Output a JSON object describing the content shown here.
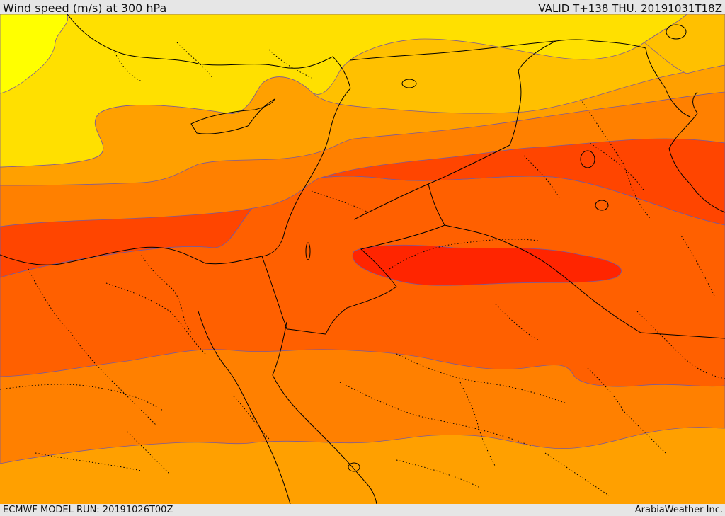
{
  "header": {
    "title": "Wind speed (m/s) at 300 hPa",
    "valid": "VALID T+138 THU. 20191031T18Z"
  },
  "footer": {
    "model_run": "ECMWF MODEL RUN: 20191026T00Z",
    "credit": "ArabiaWeather Inc."
  },
  "map": {
    "parameter": "wind speed",
    "units": "m/s",
    "level": "300 hPa",
    "colors": {
      "band_yellow_light": "#ffff00",
      "band_yellow": "#ffe000",
      "band_gold": "#ffc000",
      "band_orange_light": "#ffa000",
      "band_orange": "#ff8000",
      "band_orange_dark": "#ff6000",
      "band_red_orange": "#ff4500",
      "band_red": "#ff2500",
      "contour_line": "#7a5a9a",
      "border_line": "#000000"
    },
    "icons": [
      "country-border",
      "coastline",
      "admin-boundary-dotted"
    ]
  }
}
